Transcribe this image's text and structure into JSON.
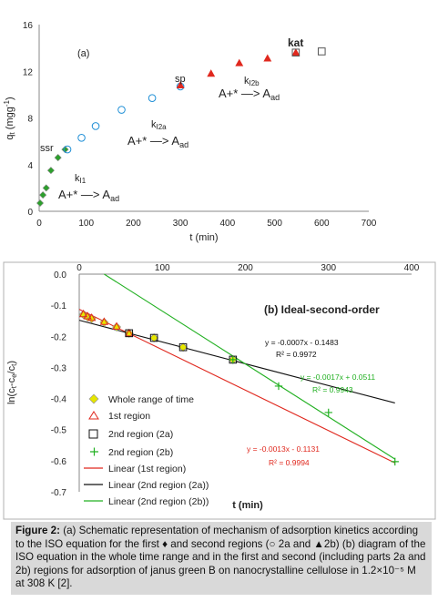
{
  "chart_data": [
    {
      "type": "scatter",
      "panel_label": "(a)",
      "xlabel": "t (min)",
      "ylabel": "qt (mgg-1)",
      "xlim": [
        0,
        700
      ],
      "ylim": [
        0,
        16
      ],
      "xticks": [
        "0",
        "100",
        "200",
        "300",
        "400",
        "500",
        "600",
        "700"
      ],
      "yticks": [
        "0",
        "4",
        "8",
        "12",
        "16"
      ],
      "series": [
        {
          "marker": "diamond",
          "color": "#2ca02c",
          "x": [
            2,
            8,
            15,
            25,
            40,
            55
          ],
          "y": [
            0.7,
            1.4,
            2.0,
            3.5,
            4.6,
            5.3
          ]
        },
        {
          "marker": "circle",
          "color": "#1f8fd6",
          "x": [
            60,
            90,
            120,
            175,
            240,
            300
          ],
          "y": [
            5.3,
            6.3,
            7.3,
            8.7,
            9.7,
            10.7
          ]
        },
        {
          "marker": "triangle",
          "color": "#e0281e",
          "x": [
            300,
            365,
            425,
            485,
            545
          ],
          "y": [
            10.8,
            11.8,
            12.7,
            13.1,
            13.6
          ]
        },
        {
          "marker": "square",
          "color": "#555555",
          "x": [
            545,
            600
          ],
          "y": [
            13.6,
            13.7
          ]
        }
      ],
      "annotations": {
        "ssr": "ssr",
        "sp": "sp",
        "kat": "kat",
        "k1": "k",
        "k1_sub": "I1",
        "k2a": "k",
        "k2a_sub": "I2a",
        "k2b": "k",
        "k2b_sub": "I2b",
        "reaction_main": "A+* —> A",
        "reaction_sub": "ad"
      }
    },
    {
      "type": "scatter",
      "title": "(b) Ideal-second-order",
      "xlabel": "t (min)",
      "ylabel": "ln(ct-ce/ct)",
      "xlim": [
        0,
        400
      ],
      "ylim": [
        -0.7,
        0.0
      ],
      "xticks": [
        "0",
        "100",
        "200",
        "300",
        "400"
      ],
      "yticks": [
        "0.0",
        "-0.1",
        "-0.2",
        "-0.3",
        "-0.4",
        "-0.5",
        "-0.6",
        "-0.7"
      ],
      "series": [
        {
          "name": "Whole range of time",
          "marker": "diamond",
          "color": "#e6e600",
          "x": [
            5,
            10,
            15,
            30,
            45,
            60,
            90,
            125,
            185
          ],
          "y": [
            -0.13,
            -0.138,
            -0.143,
            -0.155,
            -0.17,
            -0.19,
            -0.205,
            -0.235,
            -0.275
          ]
        },
        {
          "name": "1st region",
          "marker": "triangle",
          "color": "#e0281e",
          "x": [
            5,
            10,
            15,
            30,
            45,
            60
          ],
          "y": [
            -0.128,
            -0.135,
            -0.14,
            -0.153,
            -0.168,
            -0.19
          ]
        },
        {
          "name": "2nd region (2a)",
          "marker": "square",
          "color": "#111111",
          "x": [
            60,
            90,
            125,
            185
          ],
          "y": [
            -0.19,
            -0.205,
            -0.235,
            -0.275
          ]
        },
        {
          "name": "2nd region (2b)",
          "marker": "plus",
          "color": "#22b022",
          "x": [
            185,
            240,
            300,
            380
          ],
          "y": [
            -0.275,
            -0.36,
            -0.445,
            -0.603
          ]
        },
        {
          "name": "Linear (1st region)",
          "type": "line",
          "color": "#e0281e",
          "x": [
            0,
            380
          ],
          "y": [
            -0.1131,
            -0.6071
          ]
        },
        {
          "name": "Linear (2nd region (2a))",
          "type": "line",
          "color": "#111111",
          "x": [
            0,
            380
          ],
          "y": [
            -0.1483,
            -0.4143
          ]
        },
        {
          "name": "Linear (2nd region (2b))",
          "type": "line",
          "color": "#22b022",
          "x": [
            30,
            380
          ],
          "y": [
            0.0,
            -0.5949
          ]
        }
      ],
      "equations": [
        {
          "eq": "y = -0.0007x - 0.1483",
          "r2": "R² = 0.9972",
          "color": "#111111"
        },
        {
          "eq": "y = -0.0017x + 0.0511",
          "r2": "R² = 0.9943",
          "color": "#22b022"
        },
        {
          "eq": "y = -0.0013x - 0.1131",
          "r2": "R² = 0.9994",
          "color": "#e0281e"
        }
      ]
    }
  ],
  "caption": {
    "label": "Figure 2:",
    "text": "(a) Schematic representation of mechanism of adsorption kinetics according to the ISO equation for the first ♦ and second regions (○ 2a and ▲2b) (b) diagram of the ISO equation in the whole time range and in the first and second (including parts 2a and 2b) regions for adsorption of janus green B on nanocrystalline cellulose in 1.2×10⁻⁵ M at 308 K [2]."
  }
}
